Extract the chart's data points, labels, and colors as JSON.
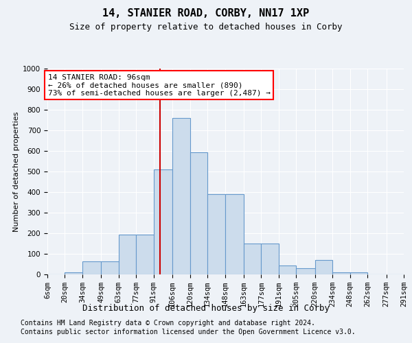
{
  "title": "14, STANIER ROAD, CORBY, NN17 1XP",
  "subtitle": "Size of property relative to detached houses in Corby",
  "xlabel": "Distribution of detached houses by size in Corby",
  "ylabel": "Number of detached properties",
  "footnote1": "Contains HM Land Registry data © Crown copyright and database right 2024.",
  "footnote2": "Contains public sector information licensed under the Open Government Licence v3.0.",
  "annotation_line1": "14 STANIER ROAD: 96sqm",
  "annotation_line2": "← 26% of detached houses are smaller (890)",
  "annotation_line3": "73% of semi-detached houses are larger (2,487) →",
  "bar_color": "#ccdcec",
  "bar_edge_color": "#6699cc",
  "vline_value": 96,
  "vline_color": "#cc0000",
  "bin_edges": [
    6,
    20,
    34,
    49,
    63,
    77,
    91,
    106,
    120,
    134,
    148,
    163,
    177,
    191,
    205,
    220,
    234,
    248,
    262,
    277,
    291
  ],
  "bin_labels": [
    "6sqm",
    "20sqm",
    "34sqm",
    "49sqm",
    "63sqm",
    "77sqm",
    "91sqm",
    "106sqm",
    "120sqm",
    "134sqm",
    "148sqm",
    "163sqm",
    "177sqm",
    "191sqm",
    "205sqm",
    "220sqm",
    "234sqm",
    "248sqm",
    "262sqm",
    "277sqm",
    "291sqm"
  ],
  "bar_heights": [
    0,
    10,
    65,
    65,
    195,
    195,
    510,
    760,
    595,
    390,
    390,
    150,
    150,
    45,
    30,
    70,
    10,
    10,
    0,
    0
  ],
  "ylim": [
    0,
    1000
  ],
  "yticks": [
    0,
    100,
    200,
    300,
    400,
    500,
    600,
    700,
    800,
    900,
    1000
  ],
  "background_color": "#eef2f7",
  "grid_color": "#ffffff",
  "title_fontsize": 11,
  "subtitle_fontsize": 9,
  "ylabel_fontsize": 8,
  "xlabel_fontsize": 9,
  "tick_fontsize": 7.5,
  "annot_fontsize": 8,
  "footnote_fontsize": 7
}
